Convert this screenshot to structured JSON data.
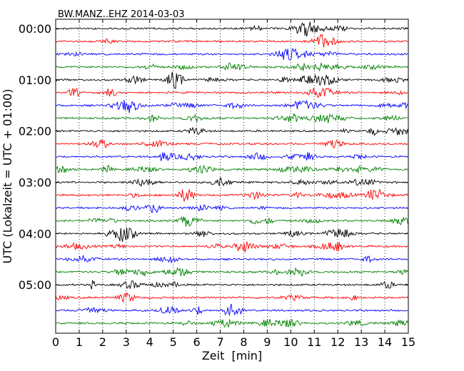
{
  "chart_data": {
    "type": "line",
    "title": "BW.MANZ..EHZ 2014-03-03",
    "xlabel": "Zeit  [min]",
    "ylabel": "UTC (Lokalzeit = UTC + 01:00)",
    "xlim": [
      0,
      15
    ],
    "x_ticks": [
      "0",
      "1",
      "2",
      "3",
      "4",
      "5",
      "6",
      "7",
      "8",
      "9",
      "10",
      "11",
      "12",
      "13",
      "14",
      "15"
    ],
    "y_tick_labels": [
      "00:00",
      "01:00",
      "02:00",
      "03:00",
      "04:00",
      "05:00"
    ],
    "trace_interval_minutes": 15,
    "trace_count": 24,
    "grid": "vertical dotted at each minute",
    "trace_colors": [
      "#000000",
      "#ff0000",
      "#0000ff",
      "#008000"
    ]
  }
}
